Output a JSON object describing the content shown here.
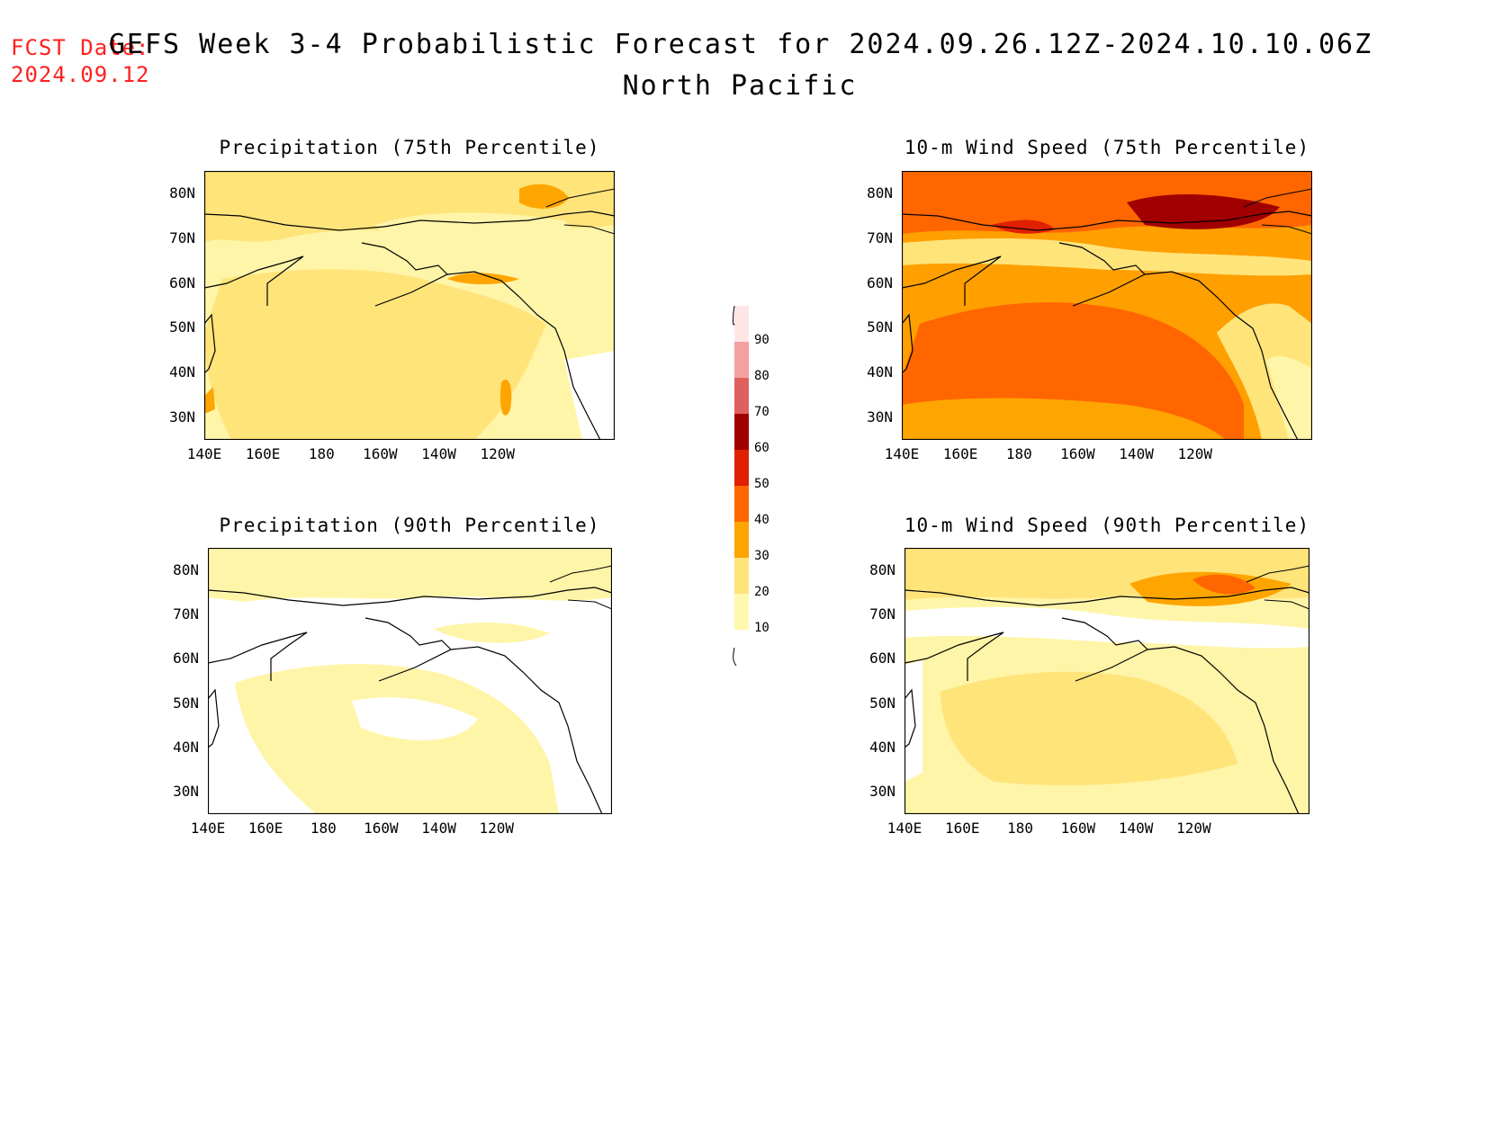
{
  "header": {
    "fcst_label": "FCST Date:",
    "fcst_date": "2024.09.12",
    "title": "GEFS Week 3-4 Probabilistic Forecast for 2024.09.26.12Z-2024.10.10.06Z",
    "subtitle": "North Pacific"
  },
  "axes": {
    "x_ticks": [
      "140E",
      "160E",
      "180",
      "160W",
      "140W",
      "120W"
    ],
    "y_ticks": [
      "80N",
      "70N",
      "60N",
      "50N",
      "40N",
      "30N"
    ]
  },
  "panels": [
    {
      "id": "precip75",
      "title": "Precipitation (75th Percentile)",
      "base_color": "#fff5a8"
    },
    {
      "id": "wind75",
      "title": "10-m Wind Speed (75th Percentile)",
      "base_color": "#ff9f00"
    },
    {
      "id": "precip90",
      "title": "Precipitation (90th Percentile)",
      "base_color": "#ffffff"
    },
    {
      "id": "wind90",
      "title": "10-m Wind Speed (90th Percentile)",
      "base_color": "#ffe47a"
    }
  ],
  "colorbar": {
    "levels": [
      "10",
      "20",
      "30",
      "40",
      "50",
      "60",
      "70",
      "80",
      "90"
    ],
    "colors": [
      "#fff9b0",
      "#ffe47a",
      "#ffa500",
      "#ff6600",
      "#e02000",
      "#a00000",
      "#e06060",
      "#f4a0a0",
      "#ffe6e6"
    ]
  },
  "chart_data": {
    "type": "heatmap",
    "title": "GEFS Week 3-4 Probabilistic Forecast for 2024.09.26.12Z-2024.10.10.06Z",
    "subtitle": "North Pacific",
    "x_range": [
      "140E",
      "110W"
    ],
    "y_range": [
      "25N",
      "85N"
    ],
    "legend_levels": [
      10,
      20,
      30,
      40,
      50,
      60,
      70,
      80,
      90
    ],
    "legend_placement": "center"
  }
}
